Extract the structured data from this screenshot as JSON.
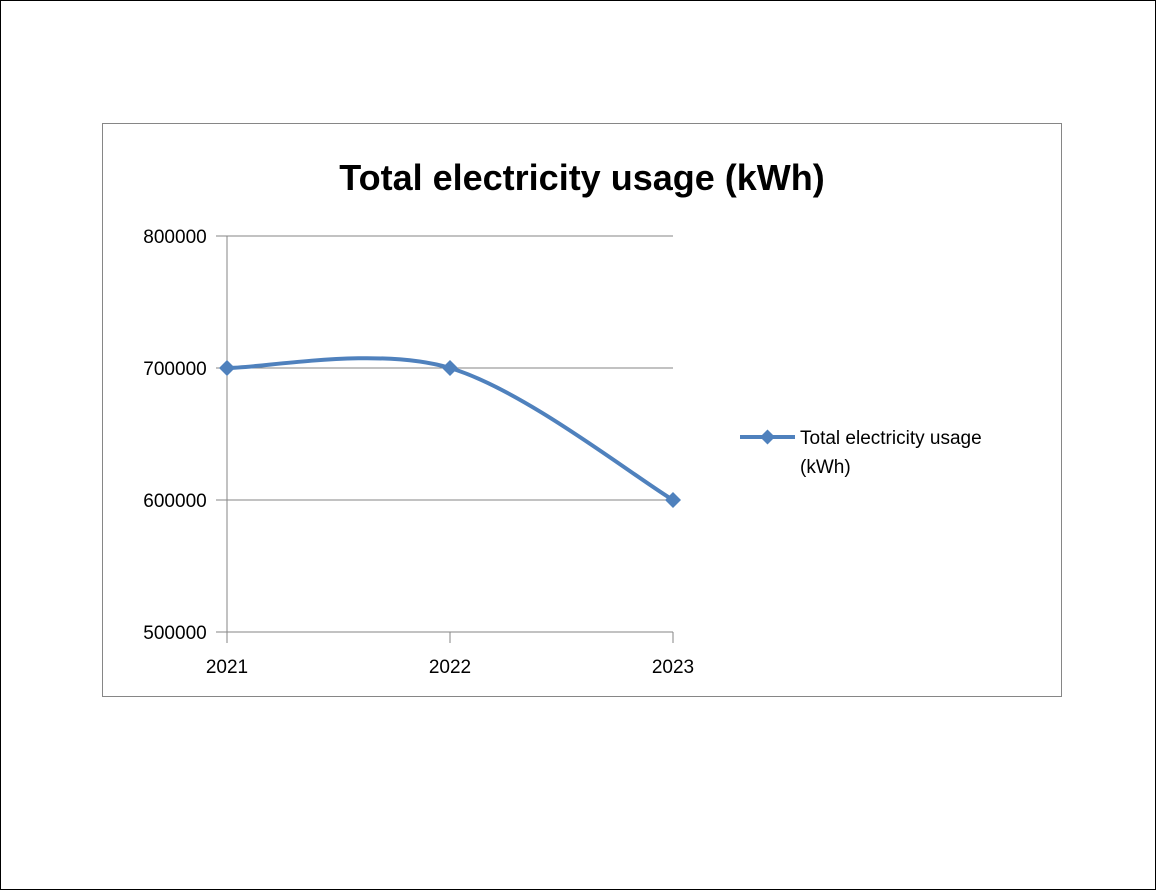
{
  "chart_data": {
    "type": "line",
    "title": "Total electricity usage (kWh)",
    "xlabel": "",
    "ylabel": "",
    "categories": [
      "2021",
      "2022",
      "2023"
    ],
    "series": [
      {
        "name": "Total electricity usage (kWh)",
        "values": [
          700000,
          700000,
          600000
        ],
        "color": "#4F81BD",
        "marker": "diamond",
        "smooth": true
      }
    ],
    "y_ticks": [
      "500000",
      "600000",
      "700000",
      "800000"
    ],
    "ylim": [
      500000,
      800000
    ],
    "grid": "horizontal",
    "legend": "right"
  }
}
